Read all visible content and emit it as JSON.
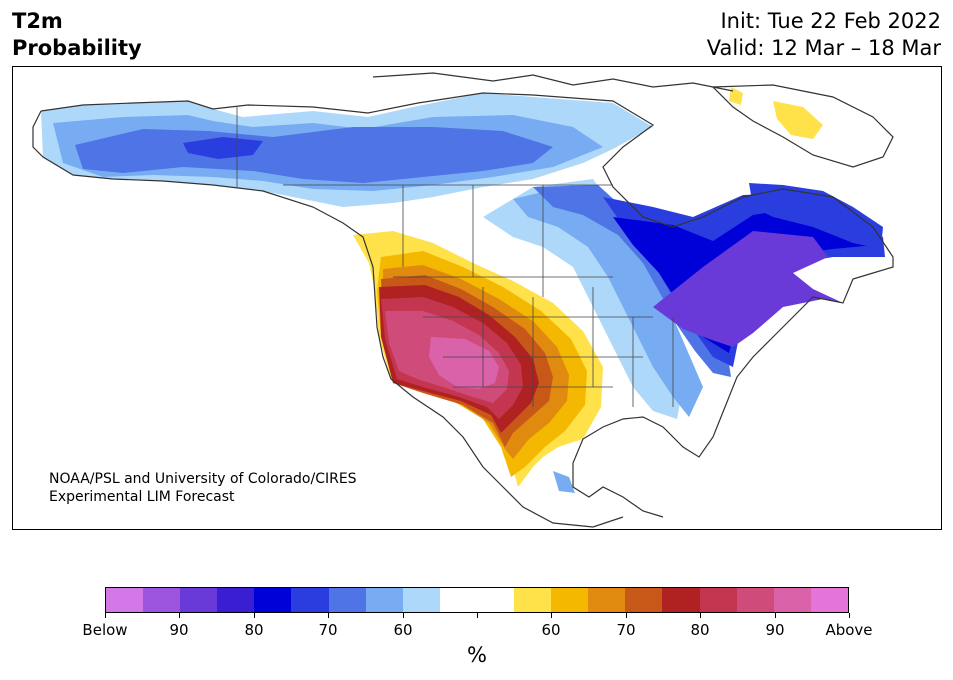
{
  "header": {
    "title_line1": "T2m",
    "title_line2": "Probability",
    "init_line": "Init: Tue 22 Feb 2022",
    "valid_line": "Valid: 12 Mar – 18 Mar"
  },
  "credit": {
    "line1": "NOAA/PSL and University of Colorado/CIRES",
    "line2": "Experimental LIM Forecast"
  },
  "colorbar": {
    "units": "%",
    "colors": [
      "#d478e8",
      "#9d55e0",
      "#6a3ad8",
      "#3a1fd2",
      "#0000d8",
      "#2a3ee0",
      "#4e74e6",
      "#78acf2",
      "#aed8fa",
      "#ffffff",
      "#ffffff",
      "#ffe14a",
      "#f5b800",
      "#e08a10",
      "#c85818",
      "#b02222",
      "#c43650",
      "#cf4c7a",
      "#da62a8",
      "#e474d8"
    ],
    "labels": [
      "Below",
      "90",
      "80",
      "70",
      "60",
      "",
      "60",
      "70",
      "80",
      "90",
      "Above"
    ]
  },
  "map": {
    "region": "North America",
    "cold_palette": [
      "#aed8fa",
      "#78acf2",
      "#4e74e6",
      "#2a3ee0",
      "#0000d8",
      "#3a1fd2",
      "#6a3ad8"
    ],
    "warm_palette": [
      "#ffe14a",
      "#f5b800",
      "#e08a10",
      "#c85818",
      "#b02222",
      "#c43650",
      "#cf4c7a",
      "#da62a8"
    ]
  }
}
